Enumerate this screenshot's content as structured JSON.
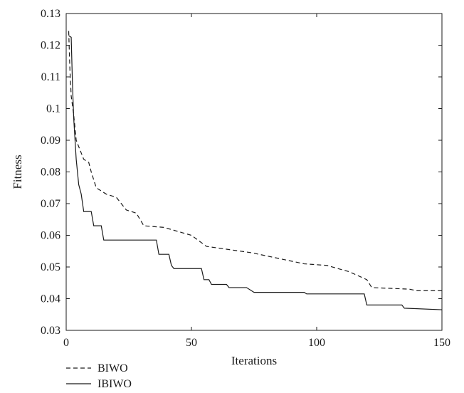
{
  "chart_data": {
    "type": "line",
    "xlabel": "Iterations",
    "ylabel": "Fitness",
    "xlim": [
      0,
      150
    ],
    "ylim": [
      0.03,
      0.13
    ],
    "x_ticks": [
      "0",
      "50",
      "100",
      "150"
    ],
    "y_ticks": [
      "0.03",
      "0.04",
      "0.05",
      "0.06",
      "0.07",
      "0.08",
      "0.09",
      "0.1",
      "0.11",
      "0.12",
      "0.13"
    ],
    "grid": false,
    "legend_position": "bottom-left, below plot",
    "series": [
      {
        "name": "BIWO",
        "line_style": "dashed",
        "color": "#1a1a1a",
        "points": [
          [
            1,
            0.1245
          ],
          [
            1.5,
            0.112
          ],
          [
            2,
            0.104
          ],
          [
            3,
            0.098
          ],
          [
            4,
            0.09
          ],
          [
            5,
            0.088
          ],
          [
            6,
            0.086
          ],
          [
            7,
            0.084
          ],
          [
            9,
            0.083
          ],
          [
            10,
            0.08
          ],
          [
            12,
            0.075
          ],
          [
            14,
            0.074
          ],
          [
            16,
            0.073
          ],
          [
            20,
            0.072
          ],
          [
            22,
            0.07
          ],
          [
            24,
            0.068
          ],
          [
            28,
            0.067
          ],
          [
            31,
            0.063
          ],
          [
            39,
            0.0625
          ],
          [
            50,
            0.06
          ],
          [
            56,
            0.0565
          ],
          [
            74,
            0.0545
          ],
          [
            95,
            0.051
          ],
          [
            104,
            0.0505
          ],
          [
            113,
            0.0485
          ],
          [
            120,
            0.046
          ],
          [
            122,
            0.0435
          ],
          [
            137,
            0.043
          ],
          [
            140,
            0.0425
          ],
          [
            150,
            0.0425
          ]
        ]
      },
      {
        "name": "IBIWO",
        "line_style": "solid",
        "color": "#1a1a1a",
        "points": [
          [
            1,
            0.123
          ],
          [
            2,
            0.1225
          ],
          [
            2.5,
            0.108
          ],
          [
            3,
            0.097
          ],
          [
            4,
            0.084
          ],
          [
            5,
            0.076
          ],
          [
            6,
            0.073
          ],
          [
            7,
            0.0675
          ],
          [
            10,
            0.0675
          ],
          [
            11,
            0.063
          ],
          [
            14,
            0.063
          ],
          [
            15,
            0.0585
          ],
          [
            36,
            0.0585
          ],
          [
            37,
            0.054
          ],
          [
            41,
            0.054
          ],
          [
            42,
            0.0505
          ],
          [
            43,
            0.0495
          ],
          [
            54,
            0.0495
          ],
          [
            55,
            0.046
          ],
          [
            57,
            0.046
          ],
          [
            58,
            0.0445
          ],
          [
            64,
            0.0445
          ],
          [
            65,
            0.0435
          ],
          [
            72,
            0.0435
          ],
          [
            75,
            0.042
          ],
          [
            95,
            0.042
          ],
          [
            96,
            0.0415
          ],
          [
            119,
            0.0415
          ],
          [
            120,
            0.038
          ],
          [
            134,
            0.038
          ],
          [
            135,
            0.037
          ],
          [
            150,
            0.0365
          ]
        ]
      }
    ]
  }
}
